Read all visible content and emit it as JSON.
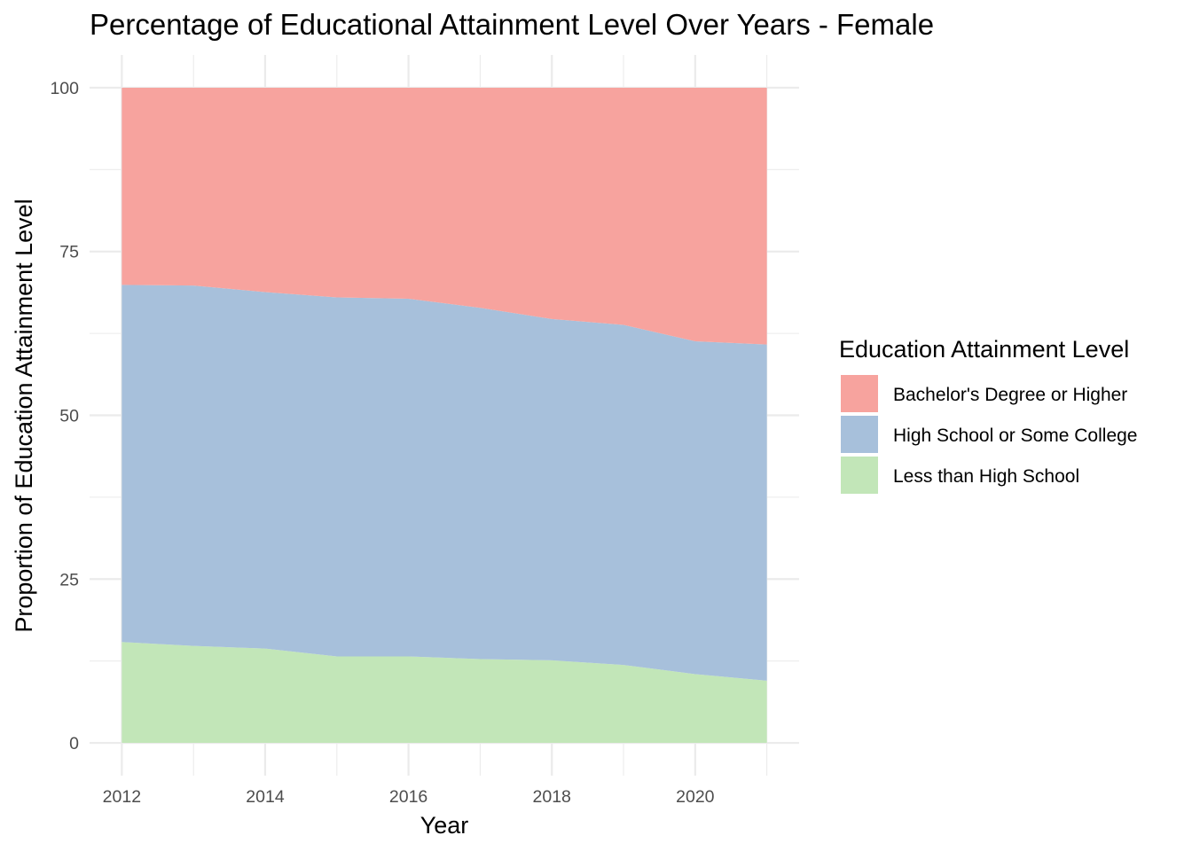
{
  "chart_data": {
    "type": "area",
    "stacked": true,
    "title": "Percentage of Educational Attainment Level Over Years - Female",
    "xlabel": "Year",
    "ylabel": "Proportion of Education Attainment Level",
    "x": [
      2012,
      2013,
      2014,
      2015,
      2016,
      2017,
      2018,
      2019,
      2020,
      2021
    ],
    "xlim": [
      2011.55,
      2021.45
    ],
    "ylim": [
      -5,
      105
    ],
    "x_ticks": [
      2012,
      2014,
      2016,
      2018,
      2020
    ],
    "x_tick_labels": [
      "2012",
      "2014",
      "2016",
      "2018",
      "2020"
    ],
    "y_ticks": [
      0,
      25,
      50,
      75,
      100
    ],
    "y_tick_labels": [
      "0",
      "25",
      "50",
      "75",
      "100"
    ],
    "grid": true,
    "legend_position": "right",
    "legend_title": "Education Attainment Level",
    "series": [
      {
        "name": "Less than High School",
        "color": "#C2E6B8",
        "values": [
          15.4,
          14.8,
          14.4,
          13.2,
          13.2,
          12.8,
          12.6,
          11.9,
          10.5,
          9.5
        ]
      },
      {
        "name": "High School or Some College",
        "color": "#A7C0DB",
        "values": [
          54.5,
          55.0,
          54.4,
          54.8,
          54.6,
          53.6,
          52.1,
          51.9,
          50.8,
          51.3
        ]
      },
      {
        "name": "Bachelor's Degree or Higher",
        "color": "#F7A39E",
        "values": [
          30.1,
          30.2,
          31.2,
          32.0,
          32.2,
          33.6,
          35.3,
          36.2,
          38.7,
          39.2
        ]
      }
    ],
    "legend_order": [
      "Bachelor's Degree or Higher",
      "High School or Some College",
      "Less than High School"
    ]
  }
}
